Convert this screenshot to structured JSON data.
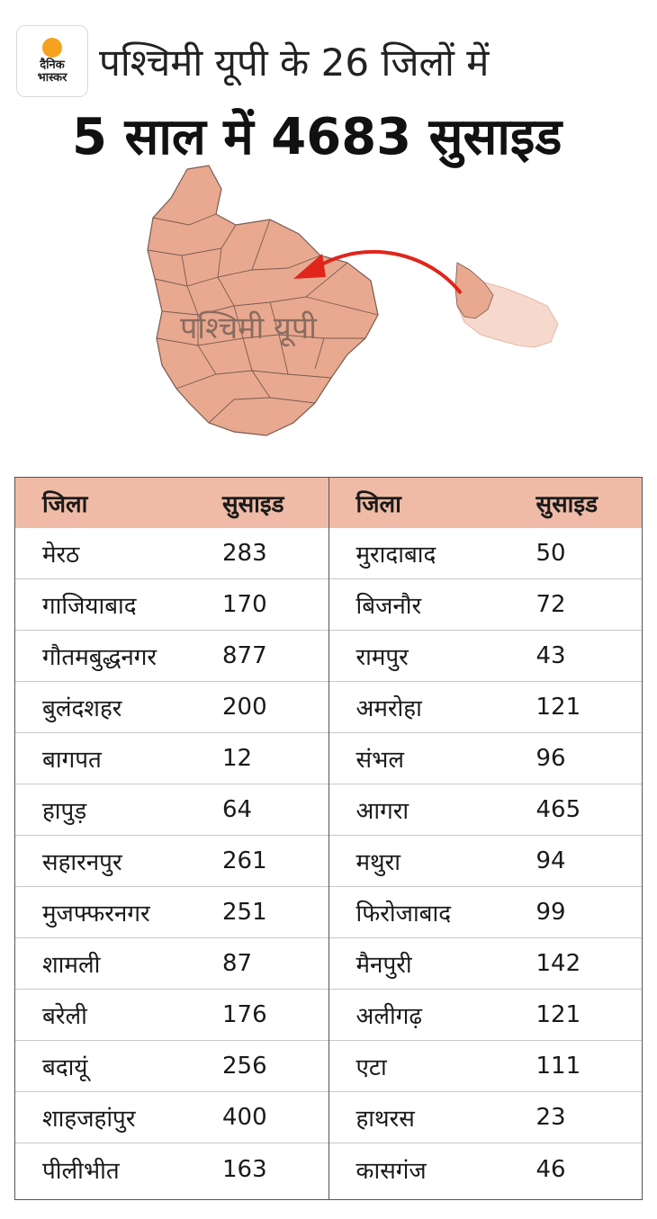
{
  "brand": {
    "line1": "दैनिक",
    "line2": "भास्कर",
    "sun_color": "#f6a21e"
  },
  "header": {
    "title_line1": "पश्चिमी यूपी के 26 जिलों में",
    "title_line2": "5 साल में 4683 सुसाइड"
  },
  "map": {
    "label": "पश्चिमी यूपी",
    "fill_color": "#e8a990",
    "arrow_color": "#e0251b"
  },
  "table": {
    "header_bg": "#efbaa6",
    "left": {
      "col_name": "जिला",
      "col_value": "सुसाइड",
      "rows": [
        {
          "district": "मेरठ",
          "suicides": "283"
        },
        {
          "district": "गाजियाबाद",
          "suicides": "170"
        },
        {
          "district": "गौतमबुद्धनगर",
          "suicides": "877"
        },
        {
          "district": "बुलंदशहर",
          "suicides": "200"
        },
        {
          "district": "बागपत",
          "suicides": "12"
        },
        {
          "district": "हापुड़",
          "suicides": "64"
        },
        {
          "district": "सहारनपुर",
          "suicides": "261"
        },
        {
          "district": "मुजफ्फरनगर",
          "suicides": "251"
        },
        {
          "district": "शामली",
          "suicides": "87"
        },
        {
          "district": "बरेली",
          "suicides": "176"
        },
        {
          "district": "बदायूं",
          "suicides": "256"
        },
        {
          "district": "शाहजहांपुर",
          "suicides": "400"
        },
        {
          "district": "पीलीभीत",
          "suicides": "163"
        }
      ]
    },
    "right": {
      "col_name": "जिला",
      "col_value": "सुसाइड",
      "rows": [
        {
          "district": "मुरादाबाद",
          "suicides": "50"
        },
        {
          "district": "बिजनौर",
          "suicides": "72"
        },
        {
          "district": "रामपुर",
          "suicides": "43"
        },
        {
          "district": "अमरोहा",
          "suicides": "121"
        },
        {
          "district": "संभल",
          "suicides": "96"
        },
        {
          "district": "आगरा",
          "suicides": "465"
        },
        {
          "district": "मथुरा",
          "suicides": "94"
        },
        {
          "district": "फिरोजाबाद",
          "suicides": "99"
        },
        {
          "district": "मैनपुरी",
          "suicides": "142"
        },
        {
          "district": "अलीगढ़",
          "suicides": "121"
        },
        {
          "district": "एटा",
          "suicides": "111"
        },
        {
          "district": "हाथरस",
          "suicides": "23"
        },
        {
          "district": "कासगंज",
          "suicides": "46"
        }
      ]
    }
  }
}
